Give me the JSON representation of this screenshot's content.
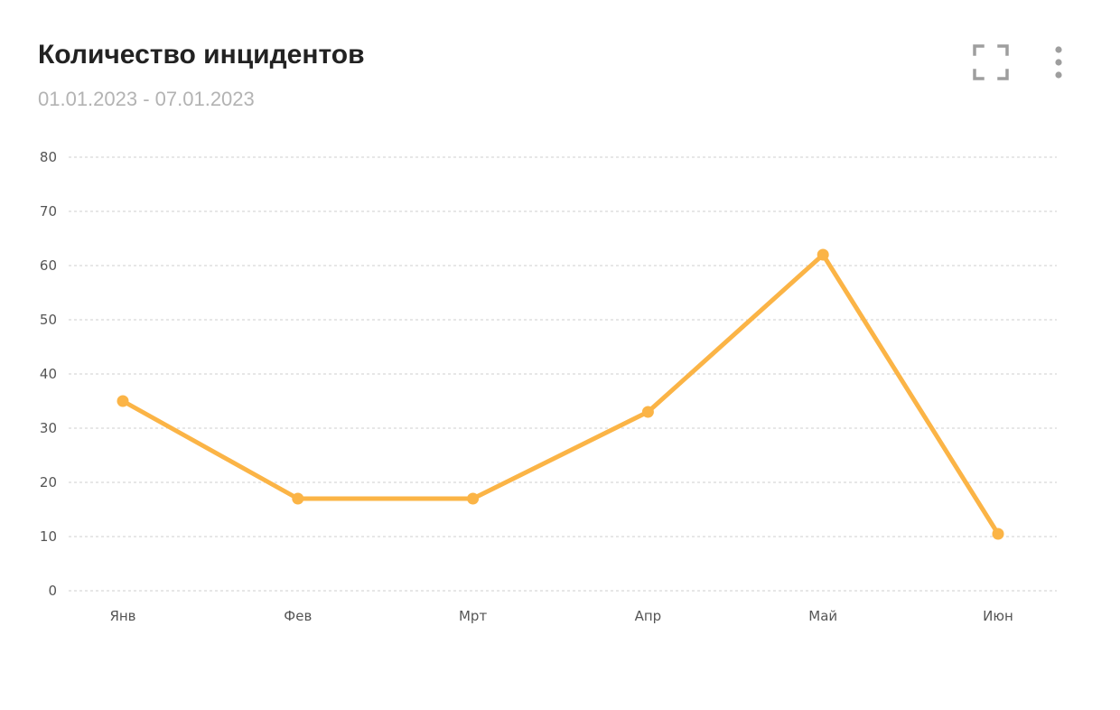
{
  "widget": {
    "title": "Количество инцидентов",
    "date_range": "01.01.2023 - 07.01.2023",
    "actions": {
      "fullscreen_icon": "fullscreen-icon",
      "menu_icon": "more-vertical-icon"
    }
  },
  "colors": {
    "line": "#fbb446",
    "grid": "#cfcfcf",
    "title": "#222222",
    "subtitle": "#b3b3b3",
    "icon": "#9e9e9e"
  },
  "chart_data": {
    "type": "line",
    "categories": [
      "Янв",
      "Фев",
      "Мрт",
      "Апр",
      "Май",
      "Июн"
    ],
    "series": [
      {
        "values": [
          35,
          17,
          17,
          33,
          62,
          10.5
        ]
      }
    ],
    "ylim": [
      0,
      80
    ],
    "yticks": [
      0,
      10,
      20,
      30,
      40,
      50,
      60,
      70,
      80
    ],
    "grid": true,
    "legend": "none"
  }
}
